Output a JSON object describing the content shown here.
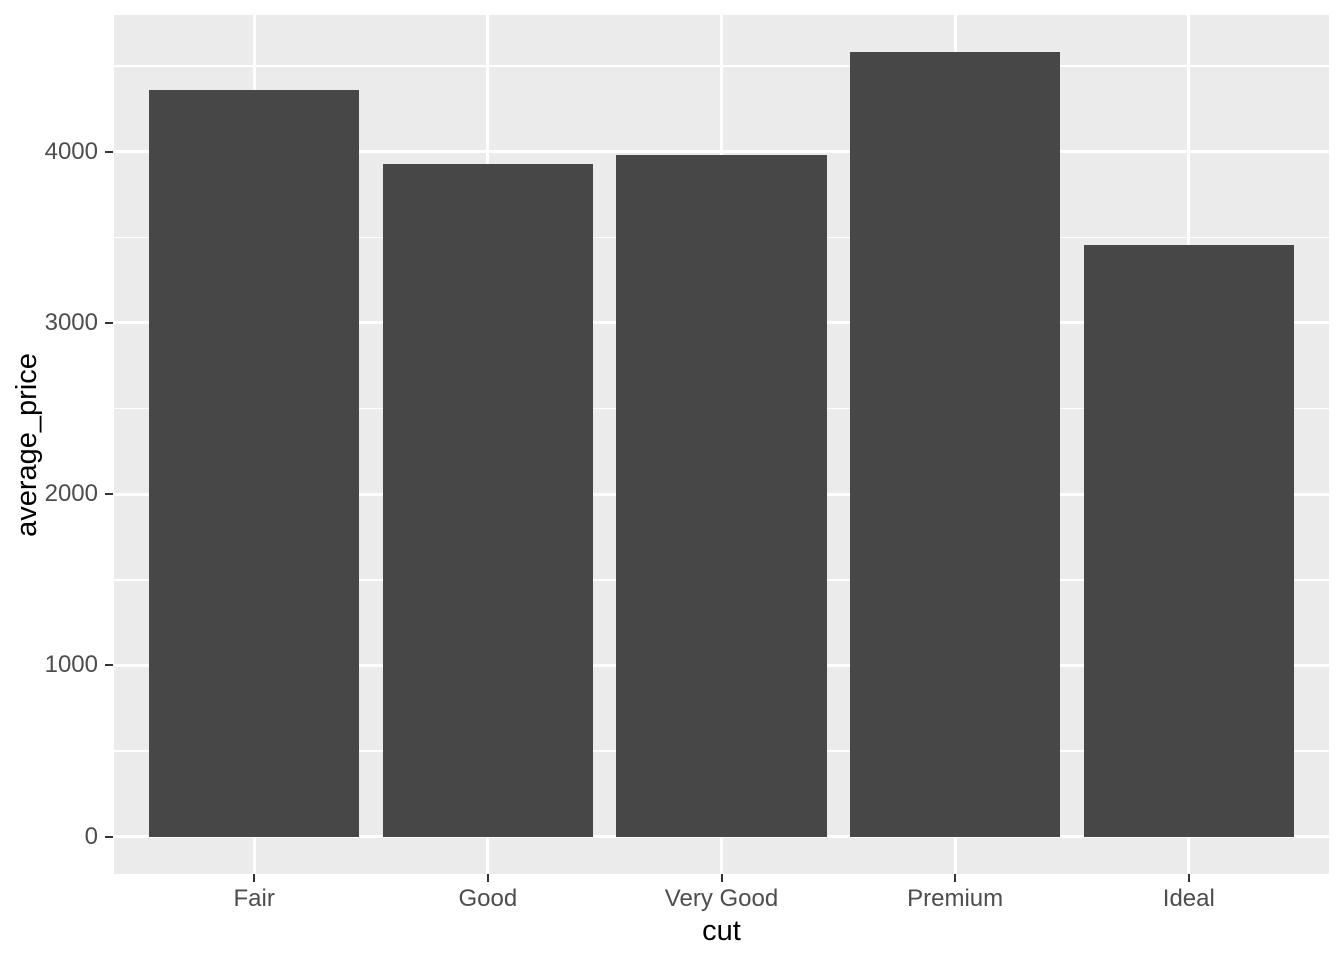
{
  "chart_data": {
    "type": "bar",
    "title": "",
    "xlabel": "cut",
    "ylabel": "average_price",
    "categories": [
      "Fair",
      "Good",
      "Very Good",
      "Premium",
      "Ideal"
    ],
    "values": [
      4358.76,
      3928.86,
      3981.76,
      4584.26,
      3457.54
    ],
    "y_ticks": [
      0,
      1000,
      2000,
      3000,
      4000
    ],
    "y_tick_labels": [
      "0",
      "1000",
      "2000",
      "3000",
      "4000"
    ],
    "y_minor_ticks": [
      500,
      1500,
      2500,
      3500,
      4500
    ],
    "ylim": [
      -218,
      4798
    ],
    "xlim_expand": 0.6,
    "bar_width_fraction": 0.9,
    "grid": true,
    "legend": "none",
    "style": {
      "figure_bg": "#FFFFFF",
      "panel_bg": "#EBEBEB",
      "grid_major_color": "#FFFFFF",
      "grid_minor_color": "#FFFFFF",
      "bar_fill": "#474747",
      "axis_text_color": "#4D4D4D",
      "axis_title_color": "#000000",
      "tick_mark_color": "#333333"
    }
  }
}
